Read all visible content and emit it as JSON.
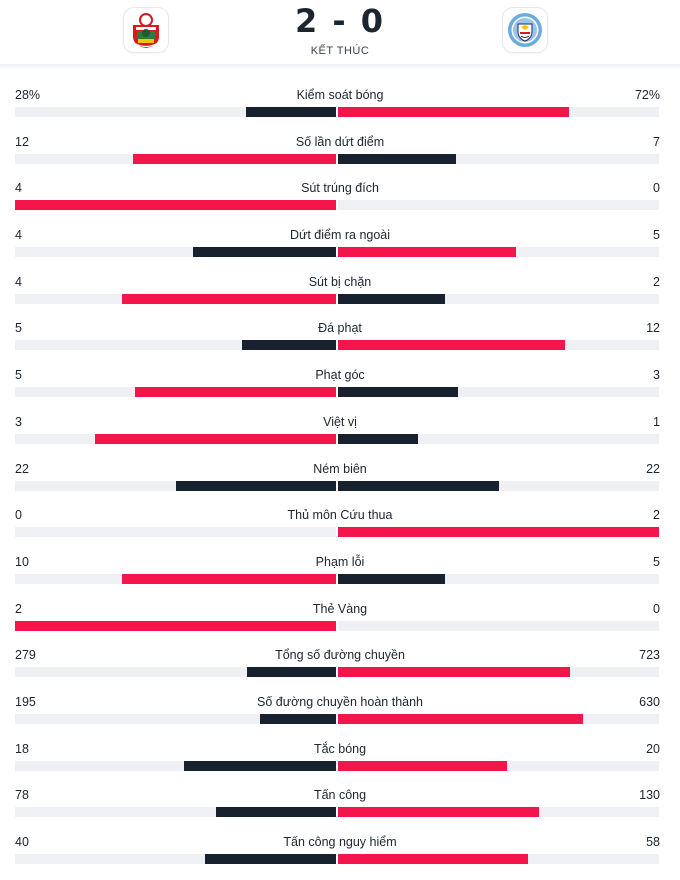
{
  "match": {
    "score": "2 - 0",
    "status": "KẾT THÚC",
    "home_logo": "southampton-crest-icon",
    "away_logo": "man-city-crest-icon"
  },
  "colors": {
    "winner": "#f4164b",
    "loser": "#17222e",
    "track": "#eef0f3"
  },
  "stats": [
    {
      "label": "Kiểm soát bóng",
      "home": "28%",
      "away": "72%",
      "home_num": 28,
      "away_num": 72
    },
    {
      "label": "Số lần dứt điểm",
      "home": "12",
      "away": "7",
      "home_num": 12,
      "away_num": 7
    },
    {
      "label": "Sút trúng đích",
      "home": "4",
      "away": "0",
      "home_num": 4,
      "away_num": 0
    },
    {
      "label": "Dứt điểm ra ngoài",
      "home": "4",
      "away": "5",
      "home_num": 4,
      "away_num": 5
    },
    {
      "label": "Sút bị chặn",
      "home": "4",
      "away": "2",
      "home_num": 4,
      "away_num": 2
    },
    {
      "label": "Đá phạt",
      "home": "5",
      "away": "12",
      "home_num": 5,
      "away_num": 12
    },
    {
      "label": "Phạt góc",
      "home": "5",
      "away": "3",
      "home_num": 5,
      "away_num": 3
    },
    {
      "label": "Việt vị",
      "home": "3",
      "away": "1",
      "home_num": 3,
      "away_num": 1
    },
    {
      "label": "Ném biên",
      "home": "22",
      "away": "22",
      "home_num": 22,
      "away_num": 22
    },
    {
      "label": "Thủ môn Cứu thua",
      "home": "0",
      "away": "2",
      "home_num": 0,
      "away_num": 2
    },
    {
      "label": "Phạm lỗi",
      "home": "10",
      "away": "5",
      "home_num": 10,
      "away_num": 5
    },
    {
      "label": "Thẻ Vàng",
      "home": "2",
      "away": "0",
      "home_num": 2,
      "away_num": 0
    },
    {
      "label": "Tổng số đường chuyền",
      "home": "279",
      "away": "723",
      "home_num": 279,
      "away_num": 723
    },
    {
      "label": "Số đường chuyền hoàn thành",
      "home": "195",
      "away": "630",
      "home_num": 195,
      "away_num": 630
    },
    {
      "label": "Tắc bóng",
      "home": "18",
      "away": "20",
      "home_num": 18,
      "away_num": 20
    },
    {
      "label": "Tấn công",
      "home": "78",
      "away": "130",
      "home_num": 78,
      "away_num": 130
    },
    {
      "label": "Tấn công nguy hiểm",
      "home": "40",
      "away": "58",
      "home_num": 40,
      "away_num": 58
    }
  ]
}
